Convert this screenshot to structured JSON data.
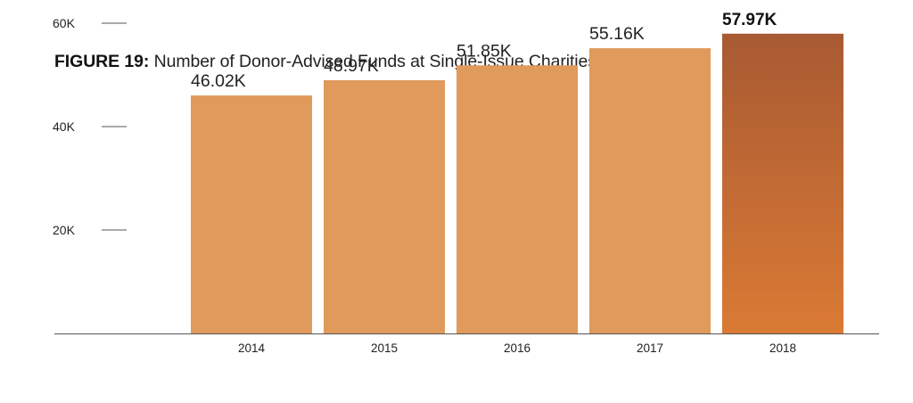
{
  "title": {
    "figure_label": "FIGURE 19:",
    "text": "Number of Donor-Advised Funds at Single-Issue Charities"
  },
  "colors": {
    "bar": "#E09A5C",
    "highlight_top": "#A85A33",
    "highlight_bottom": "#DA7A34",
    "axis": "#555555",
    "text": "#222222"
  },
  "chart_data": {
    "type": "bar",
    "title": "Number of Donor-Advised Funds at Single-Issue Charities",
    "categories": [
      "2014",
      "2015",
      "2016",
      "2017",
      "2018"
    ],
    "values": [
      46.02,
      48.97,
      51.85,
      55.16,
      57.97
    ],
    "value_labels": [
      "46.02K",
      "48.97K",
      "51.85K",
      "55.16K",
      "57.97K"
    ],
    "highlight_index": 4,
    "y_ticks": [
      20,
      40,
      60
    ],
    "y_tick_labels": [
      "20K",
      "40K",
      "60K"
    ],
    "xlabel": "",
    "ylabel": "",
    "grid": false,
    "legend": "none"
  }
}
